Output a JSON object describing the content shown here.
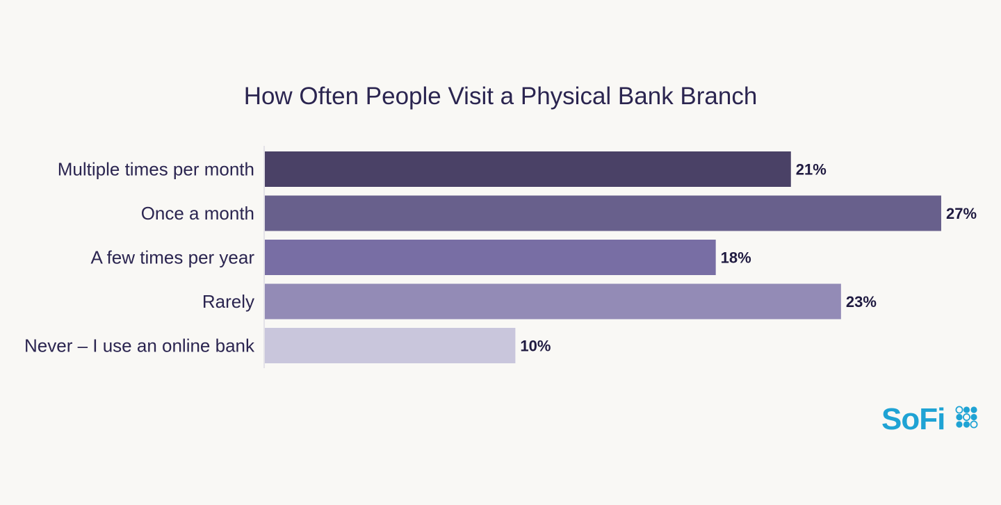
{
  "chart_data": {
    "type": "bar",
    "orientation": "horizontal",
    "title": "How Often People Visit a Physical Bank Branch",
    "categories": [
      "Multiple times per month",
      "Once a month",
      "A few times per year",
      "Rarely",
      "Never – I use an online bank"
    ],
    "values": [
      21,
      27,
      18,
      23,
      10
    ],
    "value_labels": [
      "21%",
      "27%",
      "18%",
      "23%",
      "10%"
    ],
    "unit": "%",
    "xlim": [
      0,
      27
    ],
    "grid": false,
    "legend": "none",
    "bar_colors": [
      "#4a4166",
      "#68608c",
      "#786ea4",
      "#938bb6",
      "#c9c6dc"
    ]
  },
  "brand": {
    "name": "SoFi",
    "color": "#1fa3d4",
    "icon": "sofi-dots-logo-icon"
  }
}
